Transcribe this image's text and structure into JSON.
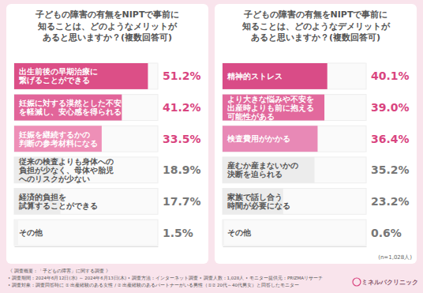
{
  "chart_data": [
    {
      "type": "bar",
      "orientation": "horizontal",
      "title": "子どもの障害の有無をNIPTで事前に\n知ることは、どのようなメリットが\nあると思いますか？(複数回答可)",
      "categories": [
        "出生前後の早期治療に\n繋げることができる",
        "妊娠に対する漠然とした不安\nを軽減し、安心感を得られる",
        "妊娠を継続するかの\n判断の参考材料になる",
        "従来の検査よりも身体への\n負担が少なく、母体や胎児\nへのリスクが少ない",
        "経済的負担を\n試算することができる",
        "その他"
      ],
      "values": [
        51.2,
        41.2,
        33.5,
        18.9,
        17.7,
        1.5
      ],
      "value_labels": [
        "51.2%",
        "41.2%",
        "33.5%",
        "18.9%",
        "17.7%",
        "1.5%"
      ],
      "colors": [
        "#dc4f87",
        "#e2659a",
        "#ee8fb7",
        "#ececec",
        "#ececec",
        "#f3f3f3"
      ],
      "xlim": [
        0,
        55
      ],
      "data_labels": true,
      "tick_labels": false
    },
    {
      "type": "bar",
      "orientation": "horizontal",
      "title": "子どもの障害の有無をNIPTで事前に\n知ることは、どのようなデメリットが\nあると思いますか？(複数回答可)",
      "categories": [
        "精神的ストレス",
        "より大きな悩みや不安を\n出産時よりも前に抱える\n可能性がある",
        "検査費用がかかる",
        "産むか産まないかの\n決断を迫られる",
        "家族で話し合う\n時間が必要になる",
        "その他"
      ],
      "values": [
        40.1,
        39.0,
        36.4,
        35.2,
        23.2,
        0.6
      ],
      "value_labels": [
        "40.1%",
        "39.0%",
        "36.4%",
        "35.2%",
        "23.2%",
        "0.6%"
      ],
      "colors": [
        "#d94c87",
        "#e2699d",
        "#e889b6",
        "#ececec",
        "#ececec",
        "#f3f3f3"
      ],
      "xlim": [
        0,
        55
      ],
      "data_labels": true,
      "tick_labels": false,
      "annotations": [
        "(n=1,028人)"
      ]
    }
  ],
  "footer": {
    "heading": "《 調査概要：「子どもの障害」に関する調査 》",
    "lines": [
      "• 調査期間：2024年6月12日(水) ～ 2024年6月13日(木) • 調査方法：インターネット調査 • 調査人数：1,028人 • モニター提供元：PRIZMAリサーチ",
      "• 調査対象：調査回答時に ① 出産経験のある女性 / ② 出産経験のあるパートナーがいる男性（①② 20代～40代男女）と回答したモニター"
    ],
    "logo": "ミネルバクリニック"
  }
}
